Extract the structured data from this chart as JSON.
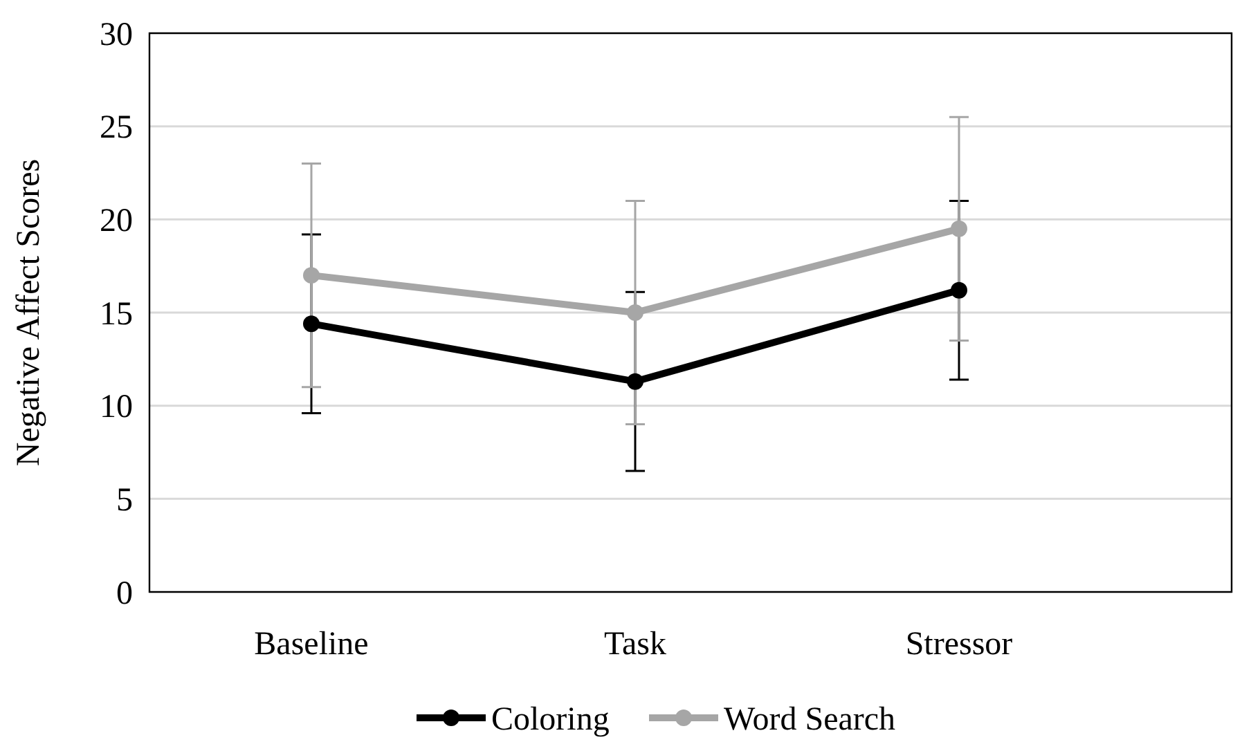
{
  "chart_data": {
    "type": "line",
    "ylabel": "Negative Affect Scores",
    "categories": [
      "Baseline",
      "Task",
      "Stressor"
    ],
    "series": [
      {
        "name": "Coloring",
        "color": "#000000",
        "values": [
          14.4,
          11.3,
          16.2
        ],
        "errors": [
          4.8,
          4.8,
          4.8
        ]
      },
      {
        "name": "Word Search",
        "color": "#a6a6a6",
        "values": [
          17,
          15,
          19.5
        ],
        "errors": [
          6,
          6,
          6
        ]
      }
    ],
    "ylim": [
      0,
      30
    ],
    "yticks": [
      0,
      5,
      10,
      15,
      20,
      25,
      30
    ],
    "grid": "y",
    "legend": "bottom",
    "marker": "circle",
    "line_style": "solid"
  }
}
